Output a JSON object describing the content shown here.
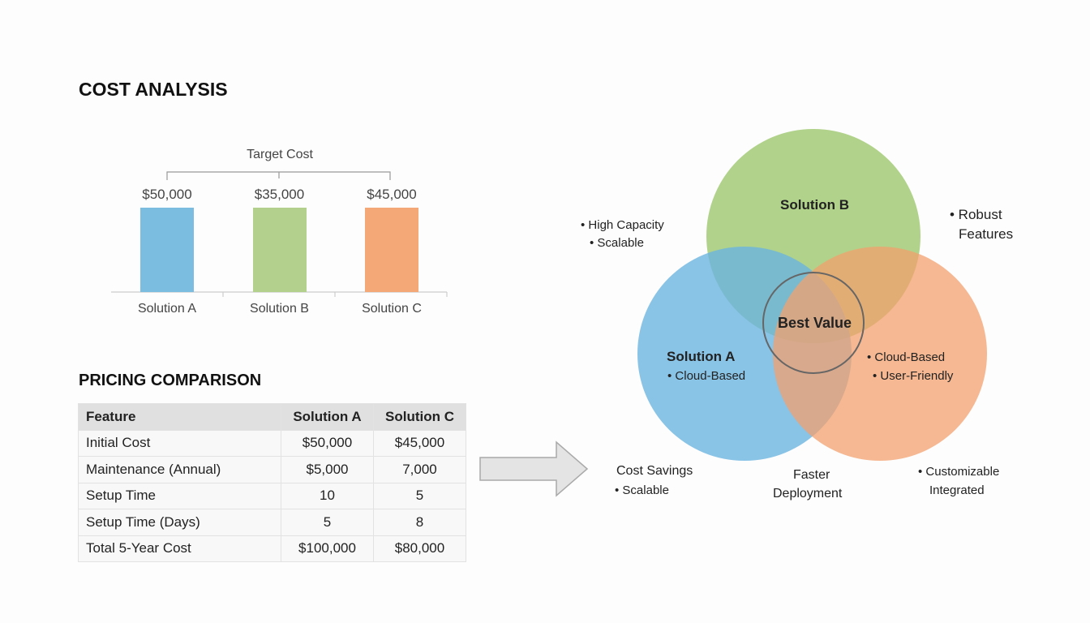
{
  "cost_analysis": {
    "title": "COST ANALYSIS"
  },
  "chart_data": {
    "type": "bar",
    "title": "",
    "bracket_label": "Target Cost",
    "categories": [
      "Solution A",
      "Solution B",
      "Solution C"
    ],
    "values": [
      50000,
      35000,
      45000
    ],
    "data_labels": [
      "$50,000",
      "$35,000",
      "$45,000"
    ],
    "colors": [
      "#7bbde0",
      "#b3d08c",
      "#f4a877"
    ],
    "grid": false
  },
  "pricing": {
    "title": "PRICING COMPARISON",
    "headers": [
      "Feature",
      "Solution A",
      "Solution C"
    ],
    "rows": [
      [
        "Initial Cost",
        "$50,000",
        "$45,000"
      ],
      [
        "Maintenance (Annual)",
        "$5,000",
        "7,000"
      ],
      [
        "Setup Time",
        "10",
        "5"
      ],
      [
        "Setup Time (Days)",
        "5",
        "8"
      ],
      [
        "Total 5-Year Cost",
        "$100,000",
        "$80,000"
      ]
    ]
  },
  "venn": {
    "solution_a": "Solution A",
    "solution_b": "Solution B",
    "center": "Best Value",
    "a_inner": "• Cloud-Based",
    "c_inner1": "• Cloud-Based",
    "c_inner2": "• User-Friendly",
    "top_left1": "• High Capacity",
    "top_left2": "• Scalable",
    "top_right1": "• Robust",
    "top_right2": "Features",
    "bottom_left1": "Cost Savings",
    "bottom_left2": "• Scalable",
    "bottom_mid1": "Faster",
    "bottom_mid2": "Deployment",
    "bottom_right1": "• Customizable",
    "bottom_right2": "Integrated",
    "colors": {
      "a": "#6cb4e0",
      "b": "#a9cd7d",
      "c": "#f3a06e"
    }
  }
}
